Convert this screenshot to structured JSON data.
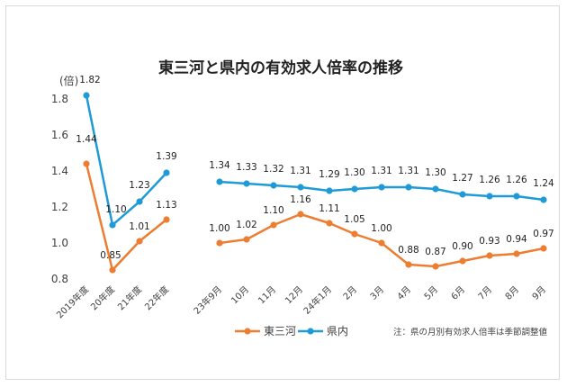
{
  "chart_data": {
    "type": "line",
    "title": "東三河と県内の有効求人倍率の推移",
    "ylabel": "(倍)",
    "ylim": [
      0.8,
      1.8
    ],
    "yticks": [
      "0.8",
      "1.0",
      "1.2",
      "1.4",
      "1.6",
      "1.8"
    ],
    "grid": false,
    "legend_position": "bottom",
    "note": "注：県の月別有効求人倍率は季節調整値",
    "categories": [
      "2019年度",
      "20年度",
      "21年度",
      "22年度",
      "23年9月",
      "10月",
      "11月",
      "12月",
      "24年1月",
      "2月",
      "3月",
      "4月",
      "5月",
      "6月",
      "7月",
      "8月",
      "9月"
    ],
    "series": [
      {
        "name": "東三河",
        "color": "#ED7D31",
        "values": [
          1.44,
          0.85,
          1.01,
          1.13,
          1.0,
          1.02,
          1.1,
          1.16,
          1.11,
          1.05,
          1.0,
          0.88,
          0.87,
          0.9,
          0.93,
          0.94,
          0.97
        ],
        "labels": [
          "1.44",
          "0.85",
          "1.01",
          "1.13",
          "1.00",
          "1.02",
          "1.10",
          "1.16",
          "1.11",
          "1.05",
          "1.00",
          "0.88",
          "0.87",
          "0.90",
          "0.93",
          "0.94",
          "0.97"
        ]
      },
      {
        "name": "県内",
        "color": "#1E9BD7",
        "values": [
          1.82,
          1.1,
          1.23,
          1.39,
          1.34,
          1.33,
          1.32,
          1.31,
          1.29,
          1.3,
          1.31,
          1.31,
          1.3,
          1.27,
          1.26,
          1.26,
          1.24
        ],
        "labels": [
          "1.82",
          "1.10",
          "1.23",
          "1.39",
          "1.34",
          "1.33",
          "1.32",
          "1.31",
          "1.29",
          "1.30",
          "1.31",
          "1.31",
          "1.30",
          "1.27",
          "1.26",
          "1.26",
          "1.24"
        ]
      }
    ],
    "segments": [
      [
        0,
        3
      ],
      [
        4,
        16
      ]
    ]
  }
}
